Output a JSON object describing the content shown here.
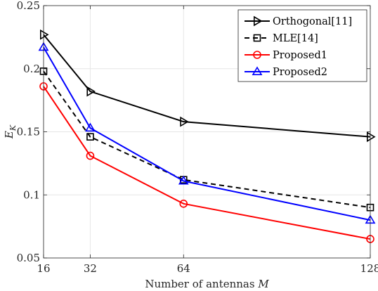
{
  "chart_data": {
    "type": "line",
    "xlabel": "Number of antennas M",
    "ylabel": "E_K",
    "x": [
      16,
      32,
      64,
      128
    ],
    "xticks": [
      16,
      32,
      64,
      128
    ],
    "xlim": [
      16,
      128
    ],
    "ylim": [
      0.05,
      0.25
    ],
    "yticks": [
      0.05,
      0.1,
      0.15,
      0.2,
      0.25
    ],
    "ytick_labels": [
      "0.05",
      "0.1",
      "0.15",
      "0.2",
      "0.25"
    ],
    "grid": true,
    "legend_position": "top-right",
    "series": [
      {
        "name": "Orthogonal[11]",
        "values": [
          0.227,
          0.182,
          0.158,
          0.146
        ],
        "color": "#000000",
        "marker": "triangle-right",
        "dash": "solid"
      },
      {
        "name": "MLE[14]",
        "values": [
          0.198,
          0.146,
          0.112,
          0.09
        ],
        "color": "#000000",
        "marker": "square",
        "dash": "dashed"
      },
      {
        "name": "Proposed1",
        "values": [
          0.186,
          0.131,
          0.093,
          0.065
        ],
        "color": "#ff0000",
        "marker": "circle",
        "dash": "solid"
      },
      {
        "name": "Proposed2",
        "values": [
          0.217,
          0.153,
          0.111,
          0.08
        ],
        "color": "#0000ff",
        "marker": "triangle-up",
        "dash": "solid"
      }
    ]
  }
}
